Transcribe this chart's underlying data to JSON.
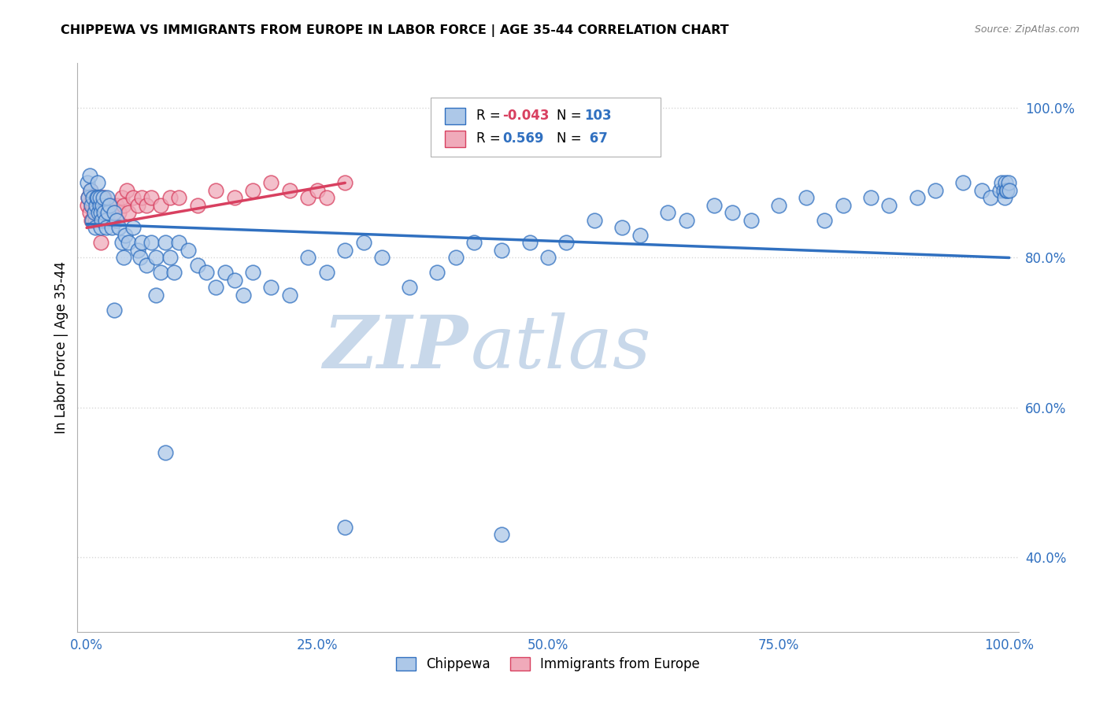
{
  "title": "CHIPPEWA VS IMMIGRANTS FROM EUROPE IN LABOR FORCE | AGE 35-44 CORRELATION CHART",
  "source": "Source: ZipAtlas.com",
  "ylabel": "In Labor Force | Age 35-44",
  "legend_labels": [
    "Chippewa",
    "Immigrants from Europe"
  ],
  "r_chippewa": -0.043,
  "n_chippewa": 103,
  "r_immigrants": 0.569,
  "n_immigrants": 67,
  "chippewa_color": "#adc8e8",
  "immigrants_color": "#f0aaba",
  "chippewa_line_color": "#3070c0",
  "immigrants_line_color": "#d84060",
  "background_color": "#ffffff",
  "grid_color": "#d8d8d8",
  "chippewa_x": [
    0.001,
    0.002,
    0.003,
    0.004,
    0.005,
    0.006,
    0.007,
    0.008,
    0.009,
    0.01,
    0.011,
    0.012,
    0.012,
    0.013,
    0.014,
    0.014,
    0.015,
    0.015,
    0.016,
    0.017,
    0.018,
    0.019,
    0.02,
    0.021,
    0.022,
    0.023,
    0.025,
    0.027,
    0.03,
    0.032,
    0.035,
    0.038,
    0.04,
    0.042,
    0.045,
    0.05,
    0.055,
    0.058,
    0.06,
    0.065,
    0.07,
    0.075,
    0.08,
    0.085,
    0.09,
    0.095,
    0.1,
    0.11,
    0.12,
    0.13,
    0.14,
    0.15,
    0.16,
    0.17,
    0.18,
    0.2,
    0.22,
    0.24,
    0.26,
    0.28,
    0.3,
    0.32,
    0.35,
    0.38,
    0.4,
    0.42,
    0.45,
    0.48,
    0.5,
    0.52,
    0.55,
    0.58,
    0.6,
    0.63,
    0.65,
    0.68,
    0.7,
    0.72,
    0.75,
    0.78,
    0.8,
    0.82,
    0.85,
    0.87,
    0.9,
    0.92,
    0.95,
    0.97,
    0.98,
    0.99,
    0.992,
    0.994,
    0.995,
    0.996,
    0.997,
    0.998,
    0.999,
    1.0,
    0.075,
    0.03,
    0.085,
    0.28,
    0.45
  ],
  "chippewa_y": [
    0.9,
    0.88,
    0.91,
    0.89,
    0.87,
    0.85,
    0.88,
    0.86,
    0.84,
    0.87,
    0.88,
    0.9,
    0.88,
    0.86,
    0.87,
    0.88,
    0.84,
    0.86,
    0.85,
    0.87,
    0.88,
    0.86,
    0.85,
    0.84,
    0.88,
    0.86,
    0.87,
    0.84,
    0.86,
    0.85,
    0.84,
    0.82,
    0.8,
    0.83,
    0.82,
    0.84,
    0.81,
    0.8,
    0.82,
    0.79,
    0.82,
    0.8,
    0.78,
    0.82,
    0.8,
    0.78,
    0.82,
    0.81,
    0.79,
    0.78,
    0.76,
    0.78,
    0.77,
    0.75,
    0.78,
    0.76,
    0.75,
    0.8,
    0.78,
    0.81,
    0.82,
    0.8,
    0.76,
    0.78,
    0.8,
    0.82,
    0.81,
    0.82,
    0.8,
    0.82,
    0.85,
    0.84,
    0.83,
    0.86,
    0.85,
    0.87,
    0.86,
    0.85,
    0.87,
    0.88,
    0.85,
    0.87,
    0.88,
    0.87,
    0.88,
    0.89,
    0.9,
    0.89,
    0.88,
    0.89,
    0.9,
    0.89,
    0.88,
    0.9,
    0.89,
    0.89,
    0.9,
    0.89,
    0.75,
    0.73,
    0.54,
    0.44,
    0.43
  ],
  "immigrants_x": [
    0.001,
    0.002,
    0.003,
    0.004,
    0.005,
    0.005,
    0.006,
    0.007,
    0.007,
    0.008,
    0.008,
    0.009,
    0.009,
    0.01,
    0.01,
    0.01,
    0.011,
    0.011,
    0.012,
    0.012,
    0.013,
    0.013,
    0.014,
    0.014,
    0.015,
    0.015,
    0.016,
    0.016,
    0.017,
    0.018,
    0.018,
    0.019,
    0.019,
    0.02,
    0.021,
    0.022,
    0.023,
    0.024,
    0.025,
    0.027,
    0.028,
    0.03,
    0.032,
    0.035,
    0.038,
    0.04,
    0.043,
    0.045,
    0.05,
    0.055,
    0.06,
    0.065,
    0.07,
    0.08,
    0.09,
    0.1,
    0.12,
    0.14,
    0.16,
    0.18,
    0.2,
    0.22,
    0.24,
    0.25,
    0.26,
    0.28,
    0.015
  ],
  "immigrants_y": [
    0.87,
    0.88,
    0.86,
    0.89,
    0.85,
    0.87,
    0.88,
    0.85,
    0.87,
    0.86,
    0.88,
    0.85,
    0.87,
    0.86,
    0.88,
    0.87,
    0.88,
    0.86,
    0.87,
    0.88,
    0.86,
    0.87,
    0.88,
    0.86,
    0.87,
    0.85,
    0.88,
    0.87,
    0.85,
    0.87,
    0.86,
    0.88,
    0.86,
    0.85,
    0.87,
    0.86,
    0.85,
    0.87,
    0.86,
    0.87,
    0.85,
    0.86,
    0.87,
    0.86,
    0.88,
    0.87,
    0.89,
    0.86,
    0.88,
    0.87,
    0.88,
    0.87,
    0.88,
    0.87,
    0.88,
    0.88,
    0.87,
    0.89,
    0.88,
    0.89,
    0.9,
    0.89,
    0.88,
    0.89,
    0.88,
    0.9,
    0.82
  ],
  "xlim": [
    -0.01,
    1.01
  ],
  "ylim": [
    0.3,
    1.06
  ],
  "xtick_positions": [
    0.0,
    0.25,
    0.5,
    0.75,
    1.0
  ],
  "xtick_labels": [
    "0.0%",
    "25.0%",
    "50.0%",
    "75.0%",
    "100.0%"
  ],
  "ytick_positions": [
    0.4,
    0.6,
    0.8,
    1.0
  ],
  "ytick_labels": [
    "40.0%",
    "60.0%",
    "80.0%",
    "100.0%"
  ],
  "watermark_zip": "ZIP",
  "watermark_atlas": "atlas",
  "watermark_color": "#c8d8ea",
  "marker_size": 10,
  "line_width": 2.5,
  "chippewa_line_start_y": 0.845,
  "chippewa_line_end_y": 0.8,
  "immigrants_line_start_y": 0.84,
  "immigrants_line_end_y": 0.9
}
